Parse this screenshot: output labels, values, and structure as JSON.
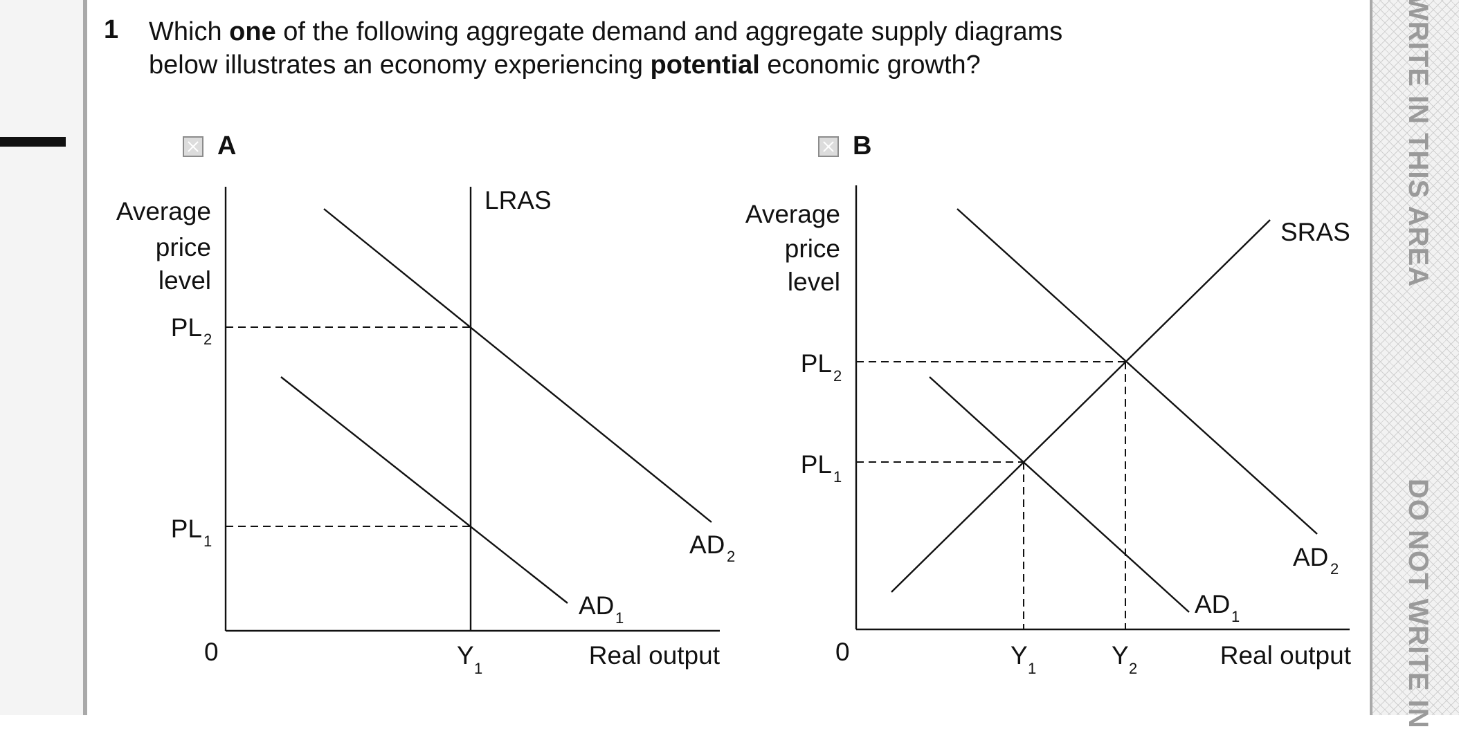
{
  "question": {
    "number": "1",
    "line1": {
      "pre": "Which ",
      "bold": "one",
      "post": " of the following aggregate demand and aggregate supply diagrams"
    },
    "line2": {
      "pre": "below illustrates an economy experiencing ",
      "bold": "potential",
      "post": " economic growth?"
    }
  },
  "margin": {
    "top_text": "WRITE IN THIS AREA",
    "bottom_text": "DO NOT WRITE IN"
  },
  "options": [
    {
      "letter": "A",
      "y_axis_label": [
        "Average",
        "price",
        "level"
      ],
      "x_axis_label": "Real output",
      "origin": "0",
      "curves": {
        "supply": "LRAS",
        "ad1": "AD",
        "ad1_sub": "1",
        "ad2": "AD",
        "ad2_sub": "2"
      },
      "price_ticks": [
        {
          "main": "PL",
          "sub": "2"
        },
        {
          "main": "PL",
          "sub": "1"
        }
      ],
      "output_ticks": [
        {
          "main": "Y",
          "sub": "1"
        }
      ]
    },
    {
      "letter": "B",
      "y_axis_label": [
        "Average",
        "price",
        "level"
      ],
      "x_axis_label": "Real output",
      "origin": "0",
      "curves": {
        "supply": "SRAS",
        "ad1": "AD",
        "ad1_sub": "1",
        "ad2": "AD",
        "ad2_sub": "2"
      },
      "price_ticks": [
        {
          "main": "PL",
          "sub": "2"
        },
        {
          "main": "PL",
          "sub": "1"
        }
      ],
      "output_ticks": [
        {
          "main": "Y",
          "sub": "1"
        },
        {
          "main": "Y",
          "sub": "2"
        }
      ]
    }
  ]
}
